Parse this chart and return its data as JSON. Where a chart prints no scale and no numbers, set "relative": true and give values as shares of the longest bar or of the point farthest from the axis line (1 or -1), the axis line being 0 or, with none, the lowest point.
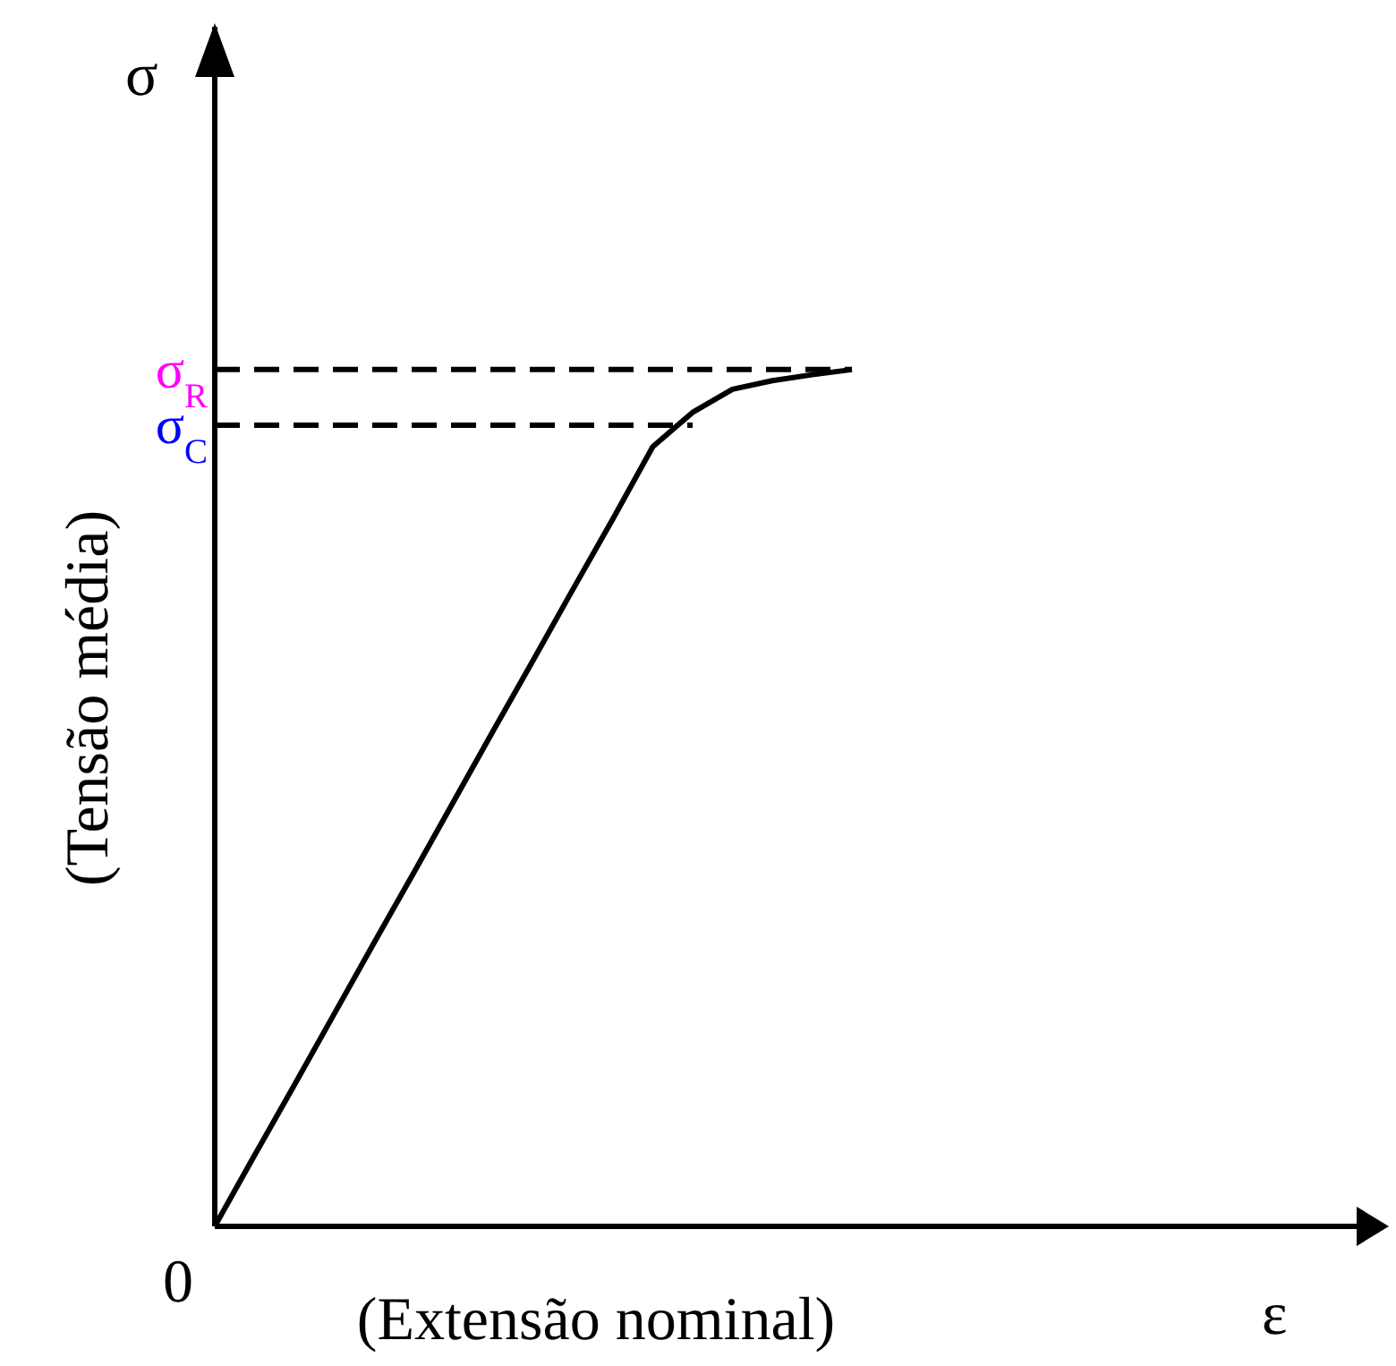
{
  "chart_data": {
    "type": "line",
    "relative": true,
    "xlabel": "(Extensão nominal)",
    "ylabel": "(Tensão média)",
    "categories": [
      null,
      null,
      null,
      null,
      null,
      null,
      null,
      null,
      null,
      null,
      null,
      null,
      null,
      null,
      null,
      null,
      null
    ],
    "series": [
      {
        "color": "#000000",
        "values": [
          0,
          0.083,
          0.165,
          0.248,
          0.331,
          0.413,
          0.496,
          0.579,
          0.661,
          0.744,
          0.826,
          0.91,
          0.95,
          0.977,
          0.987,
          0.994,
          1
        ]
      }
    ],
    "ref_lines": [
      {
        "axis": "y",
        "value": 1,
        "label": "σ$_{R}$",
        "color": "#000000",
        "line_style": "dashed"
      },
      {
        "axis": "y",
        "value": 0.935,
        "label": "σ$_{C}$",
        "color": "#000000",
        "line_style": "dashed"
      }
    ],
    "annotations": [
      "σ",
      "ε",
      "0"
    ],
    "marker": "none",
    "line_style": "solid"
  }
}
